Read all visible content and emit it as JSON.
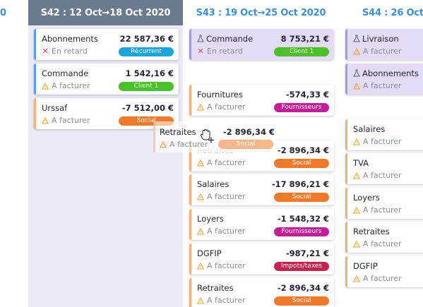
{
  "colors": {
    "active_header_bg": "#6c7a8e",
    "header_text": "#3a8fd6",
    "badge_recurrent": "#1aa6d8",
    "badge_client": "#4cbf2c",
    "badge_social": "#f07a2c",
    "badge_fournisseurs": "#c31f95",
    "badge_impots": "#c3234f"
  },
  "columns": {
    "prev": {
      "title": "0"
    },
    "s42": {
      "title": "S42 : 12 Oct→18 Oct 2020",
      "cards": [
        {
          "name": "Abonnements",
          "amount": "22 587,36 €",
          "status": "En retard",
          "status_icon": "x-icon",
          "badge": "Récurrent",
          "badge_type": "recurrent"
        },
        {
          "name": "Commande",
          "amount": "1 542,16 €",
          "status": "A facturer",
          "status_icon": "warning-icon",
          "badge": "Client 1",
          "badge_type": "client"
        },
        {
          "name": "Urssaf",
          "amount": "-7 512,00 €",
          "status": "A facturer",
          "status_icon": "warning-icon",
          "badge": "Social",
          "badge_type": "social"
        }
      ]
    },
    "s43": {
      "title": "S43 : 19 Oct→25 Oct 2020",
      "cards": [
        {
          "name": "Commande",
          "amount": "8 753,21 €",
          "status": "En retard",
          "status_icon": "x-icon",
          "badge": "Client 1",
          "badge_type": "client"
        },
        {
          "name": "Fournitures",
          "amount": "-574,33 €",
          "status": "A facturer",
          "status_icon": "warning-icon",
          "badge": "Fournisseurs",
          "badge_type": "fournisseurs"
        },
        {
          "name": "Retraites",
          "amount": "-2 896,34 €",
          "status": "A facturer",
          "status_icon": "warning-icon",
          "badge": "Social",
          "badge_type": "social"
        },
        {
          "name": "Salaires",
          "amount": "-17 896,21 €",
          "status": "A facturer",
          "status_icon": "warning-icon",
          "badge": "Social",
          "badge_type": "social"
        },
        {
          "name": "Loyers",
          "amount": "-1 548,32 €",
          "status": "A facturer",
          "status_icon": "warning-icon",
          "badge": "Fournisseurs",
          "badge_type": "fournisseurs"
        },
        {
          "name": "DGFIP",
          "amount": "-987,21 €",
          "status": "A facturer",
          "status_icon": "warning-icon",
          "badge": "Impots/taxes",
          "badge_type": "impots"
        },
        {
          "name": "Retraites",
          "amount": "-2 896,34 €",
          "status": "A facturer",
          "status_icon": "warning-icon",
          "badge": "Social",
          "badge_type": "social"
        }
      ]
    },
    "s44": {
      "title": "S44 : 26 Oct",
      "cards": [
        {
          "name": "Livraison",
          "status": "A facturer"
        },
        {
          "name": "Abonnements",
          "status": "A facturer"
        },
        {
          "name": "Salaires",
          "status": "A facturer"
        },
        {
          "name": "TVA",
          "status": "A facturer"
        },
        {
          "name": "Loyers",
          "status": "A facturer"
        },
        {
          "name": "Retraites",
          "status": "A facturer"
        },
        {
          "name": "DGFIP",
          "status": "A facturer"
        }
      ]
    }
  },
  "drag": {
    "name": "Retraites",
    "amount": "-2 896,34 €",
    "status": "A facturer",
    "badge": "Social",
    "icon": "drag-hand-cursor-icon"
  }
}
